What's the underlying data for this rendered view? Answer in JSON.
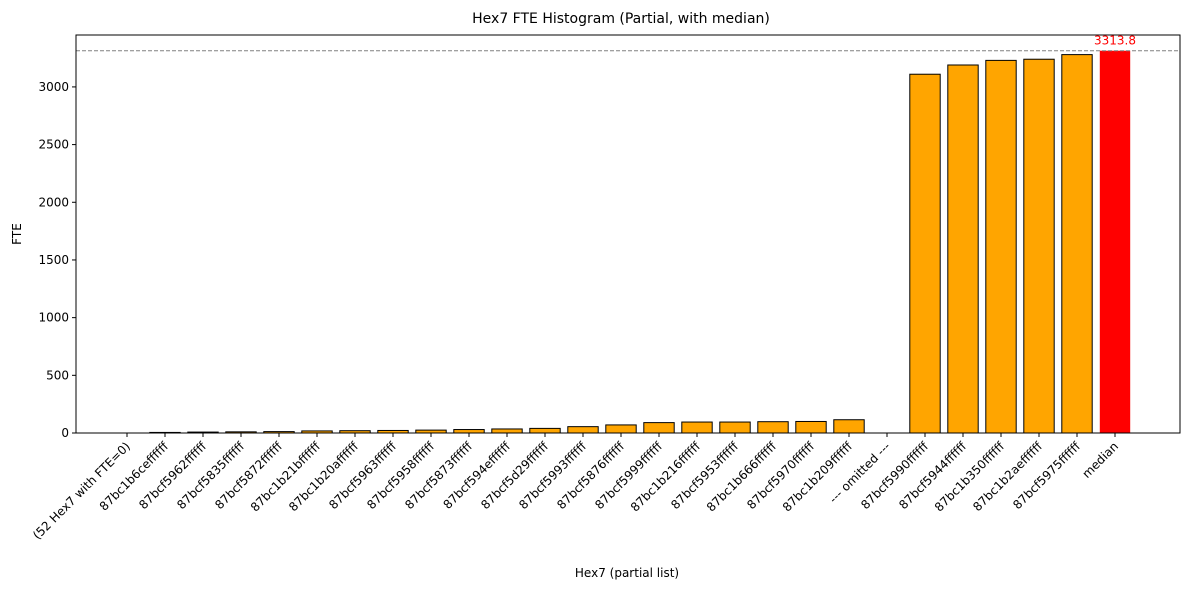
{
  "chart_data": {
    "type": "bar",
    "title": "Hex7 FTE Histogram (Partial, with median)",
    "xlabel": "Hex7 (partial list)",
    "ylabel": "FTE",
    "ylim": [
      0,
      3450
    ],
    "yticks": [
      0,
      500,
      1000,
      1500,
      2000,
      2500,
      3000
    ],
    "grid": false,
    "categories": [
      "(52 Hex7 with FTE=0)",
      "87bc1b6ceffffff",
      "87bcf5962ffffff",
      "87bcf5835ffffff",
      "87bcf5872ffffff",
      "87bc1b21bffffff",
      "87bc1b20affffff",
      "87bcf5963ffffff",
      "87bcf5958ffffff",
      "87bcf5873ffffff",
      "87bcf594effffff",
      "87bcf5d29ffffff",
      "87bcf5993ffffff",
      "87bcf5876ffffff",
      "87bcf5999ffffff",
      "87bc1b216ffffff",
      "87bcf5953ffffff",
      "87bc1b666ffffff",
      "87bcf5970ffffff",
      "87bc1b209ffffff",
      "--- omitted ---",
      "87bcf5990ffffff",
      "87bcf5944ffffff",
      "87bc1b350ffffff",
      "87bc1b2aeffffff",
      "87bcf5975ffffff",
      "median"
    ],
    "values": [
      0,
      5,
      8,
      10,
      12,
      18,
      20,
      22,
      25,
      30,
      35,
      40,
      55,
      70,
      90,
      95,
      95,
      98,
      100,
      115,
      0,
      3110,
      3190,
      3230,
      3240,
      3280,
      3313.8
    ],
    "colors": {
      "bar": "#ffa500",
      "median_bar": "#ff0000",
      "edge": "#000000",
      "median_line": "#808080",
      "median_label": "#ff0000"
    },
    "median": 3313.8,
    "median_label": "3313.8"
  }
}
